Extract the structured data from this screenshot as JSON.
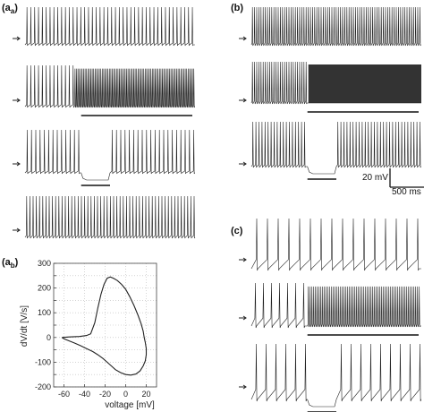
{
  "panels": {
    "aa": {
      "label": "(a",
      "sub": "a",
      "suffix": ")"
    },
    "ab": {
      "label": "(a",
      "sub": "b",
      "suffix": ")"
    },
    "b": {
      "label": "(b)"
    },
    "c": {
      "label": "(c)"
    }
  },
  "scalebar": {
    "voltage": "20 mV",
    "time": "500 ms"
  },
  "colors": {
    "trace": "#222222",
    "burst": "#333333",
    "axis": "#444444",
    "grid": "#bbbbbb"
  },
  "chart_data": [
    {
      "type": "line",
      "title": "",
      "xlabel": "voltage [mV]",
      "ylabel": "dV/dt [V/s]",
      "xlim": [
        -70,
        30
      ],
      "ylim": [
        -200,
        300
      ],
      "xticks": [
        -60,
        -40,
        -20,
        0,
        20
      ],
      "yticks": [
        -200,
        -150,
        -100,
        -50,
        0,
        50,
        100,
        150,
        200,
        250,
        300
      ],
      "grid": true,
      "x": [
        -62,
        -55,
        -45,
        -38,
        -34,
        -30,
        -27,
        -24,
        -21,
        -18,
        -15,
        -12,
        -8,
        -4,
        0,
        4,
        8,
        12,
        15,
        17,
        18,
        19,
        20,
        20,
        19,
        17,
        14,
        10,
        5,
        0,
        -5,
        -10,
        -14,
        -18,
        -22,
        -27,
        -32,
        -38,
        -44,
        -50,
        -56,
        -60,
        -62
      ],
      "y": [
        0,
        2,
        4,
        8,
        15,
        60,
        120,
        175,
        215,
        240,
        245,
        240,
        230,
        215,
        195,
        165,
        130,
        90,
        55,
        25,
        0,
        -20,
        -45,
        -70,
        -95,
        -115,
        -135,
        -148,
        -152,
        -150,
        -142,
        -130,
        -115,
        -100,
        -85,
        -70,
        -57,
        -45,
        -33,
        -22,
        -12,
        -5,
        0
      ]
    }
  ],
  "traces": [
    {
      "panel": "aa",
      "segments": [
        {
          "t0": 0,
          "t1": 1,
          "interval": 4.3,
          "amp": 1
        }
      ]
    },
    {
      "panel": "aa",
      "segments": [
        {
          "t0": 0,
          "t1": 0.29,
          "interval": 4.3,
          "amp": 1
        },
        {
          "t0": 0.29,
          "t1": 1,
          "interval": 1.6,
          "amp": 0.92
        }
      ]
    },
    {
      "panel": "aa",
      "segments": [
        {
          "t0": 0,
          "t1": 0.33,
          "interval": 4.8,
          "amp": 1
        },
        {
          "t0": 0.33,
          "t1": 0.5,
          "hyper": true
        },
        {
          "t0": 0.5,
          "t1": 1,
          "interval": 4.8,
          "amp": 1
        }
      ]
    },
    {
      "panel": "aa",
      "segments": [
        {
          "t0": 0,
          "t1": 1,
          "interval": 3.6,
          "amp": 1
        }
      ]
    },
    {
      "panel": "b",
      "segments": [
        {
          "t0": 0,
          "t1": 1,
          "interval": 2.4,
          "amp": 1
        }
      ]
    },
    {
      "panel": "b",
      "segments": [
        {
          "t0": 0,
          "t1": 0.33,
          "interval": 2.4,
          "amp": 1
        },
        {
          "t0": 0.33,
          "t1": 1,
          "dense": true
        }
      ]
    },
    {
      "panel": "b",
      "segments": [
        {
          "t0": 0,
          "t1": 0.33,
          "interval": 3.4,
          "amp": 1
        },
        {
          "t0": 0.33,
          "t1": 0.5,
          "hyper": true
        },
        {
          "t0": 0.5,
          "t1": 1,
          "interval": 3.4,
          "amp": 1
        }
      ]
    },
    {
      "panel": "c",
      "segments": [
        {
          "t0": 0,
          "t1": 1,
          "interval": 12.0,
          "amp": 1,
          "ramp": true
        }
      ]
    },
    {
      "panel": "c",
      "segments": [
        {
          "t0": 0,
          "t1": 0.33,
          "interval": 9.0,
          "amp": 1,
          "ramp": true
        },
        {
          "t0": 0.33,
          "t1": 1,
          "interval": 2.0,
          "amp": 0.92
        }
      ]
    },
    {
      "panel": "c",
      "segments": [
        {
          "t0": 0,
          "t1": 0.33,
          "interval": 11.0,
          "amp": 1,
          "ramp": true
        },
        {
          "t0": 0.33,
          "t1": 0.5,
          "hyper": true
        },
        {
          "t0": 0.5,
          "t1": 1,
          "interval": 11.0,
          "amp": 1,
          "ramp": true
        }
      ]
    }
  ]
}
